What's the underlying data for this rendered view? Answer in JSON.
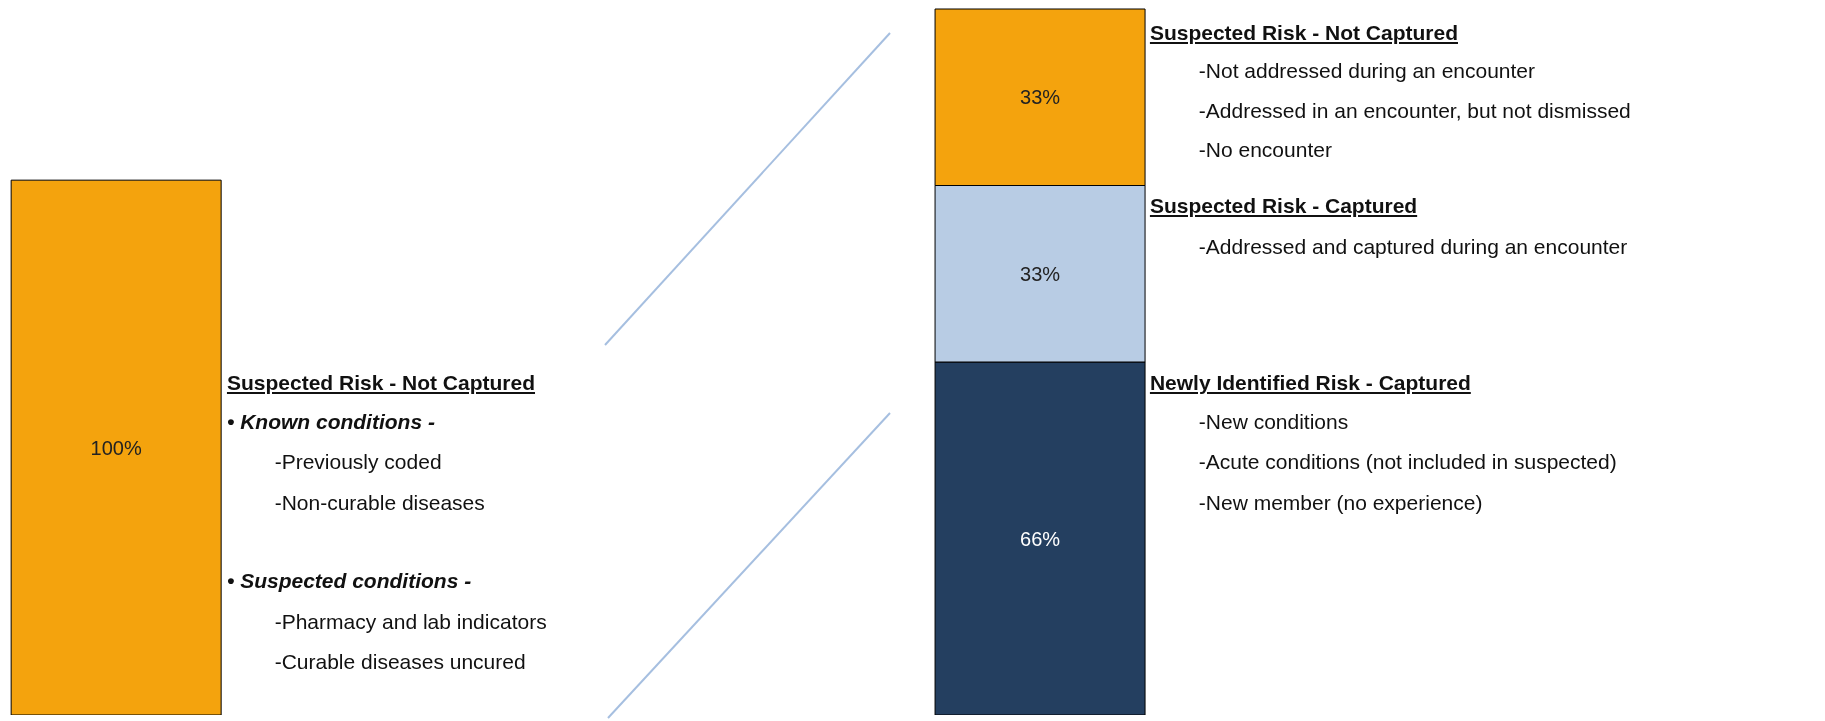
{
  "chart_data": {
    "type": "bar",
    "stacked": true,
    "categories": [
      null,
      null
    ],
    "series": [
      {
        "colors": [
          "#f4a30d",
          "#243f60"
        ],
        "values": [
          100,
          66
        ],
        "value_labels": [
          "100%",
          "66%"
        ]
      },
      {
        "color": "#b8cce4",
        "values": [
          null,
          33
        ],
        "value_labels": [
          null,
          "33%"
        ]
      },
      {
        "color": "#f4a30d",
        "values": [
          null,
          33
        ],
        "value_labels": [
          null,
          "33%"
        ]
      }
    ],
    "annotations": [
      "Suspected Risk - Not Captured",
      "• Known conditions -",
      "-Previously coded",
      "-Non-curable diseases",
      "• Suspected conditions -",
      "-Pharmacy and lab indicators",
      "-Curable diseases uncured",
      "Suspected Risk - Not Captured",
      "-Not addressed during an encounter",
      "-Addressed in an encounter, but not dismissed",
      "-No encounter",
      "Suspected Risk - Captured",
      "-Addressed and captured during an encounter",
      "Newly Identified Risk - Captured",
      "-New conditions",
      "-Acute conditions (not included in suspected)",
      "-New member (no experience)"
    ]
  }
}
